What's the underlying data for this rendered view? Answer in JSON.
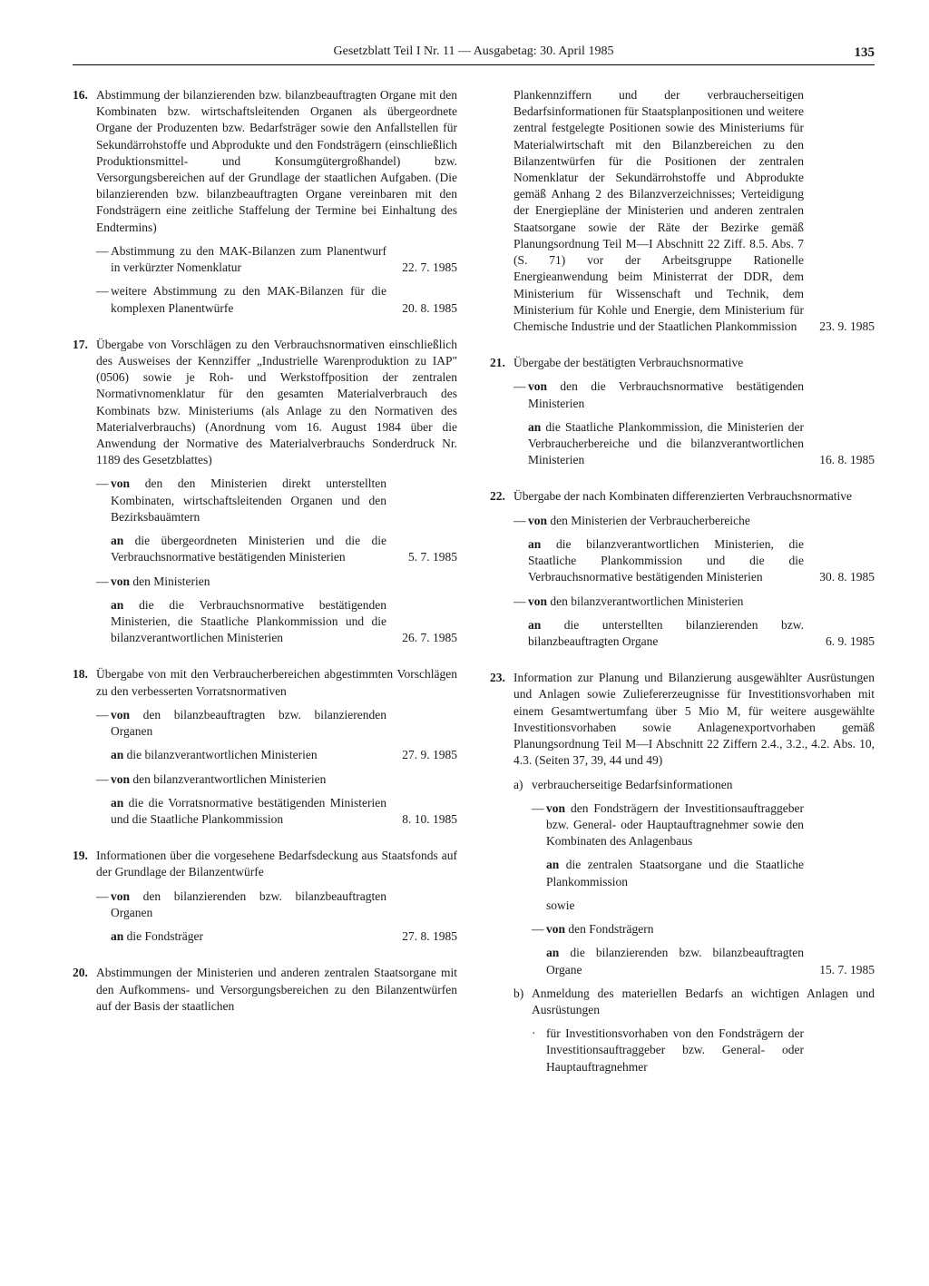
{
  "header": {
    "title": "Gesetzblatt Teil I Nr. 11 — Ausgabetag: 30. April 1985",
    "page": "135"
  },
  "items": [
    {
      "n": "16.",
      "text": "Abstimmung der bilanzierenden bzw. bilanzbeauftragten Organe mit den Kombinaten bzw. wirtschaftsleitenden Organen als übergeordnete Organe der Produzenten bzw. Bedarfsträger sowie den Anfallstellen für Sekundärrohstoffe und Abprodukte und den Fondsträgern (einschließlich Produktionsmittel- und Konsumgütergroßhandel) bzw. Versorgungsbereichen auf der Grundlage der staatlichen Aufgaben. (Die bilanzierenden bzw. bilanzbeauftragten Organe vereinbaren mit den Fondsträgern eine zeitliche Staffelung der Termine bei Einhaltung des Endtermins)",
      "subs": [
        {
          "text": "Abstimmung zu den MAK-Bilanzen zum Planentwurf in verkürzter Nomenklatur",
          "date": "22.  7. 1985"
        },
        {
          "text": "weitere Abstimmung zu den MAK-Bilanzen für die komplexen Planentwürfe",
          "date": "20.  8. 1985"
        }
      ]
    },
    {
      "n": "17.",
      "text": "Übergabe von Vorschlägen zu den Verbrauchsnormativen einschließlich des Ausweises der Kennziffer „Industrielle Warenproduktion zu IAP\" (0506) sowie je Roh- und Werkstoffposition der zentralen Normativnomenklatur für den gesamten Materialverbrauch des Kombinats bzw. Ministeriums (als Anlage zu den Normativen des Materialverbrauchs) (Anordnung vom 16. August 1984 über die Anwendung der Normative des Materialverbrauchs Sonderdruck Nr. 1189 des Gesetzblattes)",
      "subs": [
        {
          "von": "von",
          "vonTxt": " den den Ministerien direkt unterstellten Kombinaten, wirtschaftsleitenden Organen und den Bezirksbauämtern",
          "an": "an",
          "anTxt": " die übergeordneten Ministerien und die die Verbrauchsnormative bestätigenden Ministerien",
          "date": "5.  7. 1985"
        },
        {
          "von": "von",
          "vonTxt": " den Ministerien",
          "an": "an",
          "anTxt": " die die Verbrauchsnormative bestätigenden Ministerien, die Staatliche Plankommission und die bilanzverantwortlichen Ministerien",
          "date": "26.  7. 1985"
        }
      ]
    },
    {
      "n": "18.",
      "text": "Übergabe von mit den Verbraucherbereichen abgestimmten Vorschlägen zu den verbesserten Vorratsnormativen",
      "subs": [
        {
          "von": "von",
          "vonTxt": " den bilanzbeauftragten bzw. bilanzierenden Organen",
          "an": "an",
          "anTxt": " die bilanzverantwortlichen Ministerien",
          "date": "27.  9. 1985"
        },
        {
          "von": "von",
          "vonTxt": " den bilanzverantwortlichen Ministerien",
          "an": "an",
          "anTxt": " die die Vorratsnormative bestätigenden Ministerien und die Staatliche Plankommission",
          "date": "8. 10. 1985"
        }
      ]
    },
    {
      "n": "19.",
      "text": "Informationen über die vorgesehene Bedarfsdeckung aus Staatsfonds auf der Grundlage der Bilanzentwürfe",
      "subs": [
        {
          "von": "von",
          "vonTxt": " den bilanzierenden bzw. bilanzbeauftragten Organen",
          "an": "an",
          "anTxt": " die Fondsträger",
          "date": "27.  8. 1985"
        }
      ]
    },
    {
      "n": "20.",
      "text": "Abstimmungen der Ministerien und anderen zentralen Staatsorgane mit den Aufkommens- und Versorgungsbereichen zu den Bilanzentwürfen auf der Basis der staatlichen"
    },
    {
      "n": "20.",
      "continuation": true,
      "text": "Plankennziffern und der verbraucherseitigen Bedarfsinformationen für Staatsplanpositionen und weitere zentral festgelegte Positionen sowie des Ministeriums für Materialwirtschaft mit den Bilanzbereichen zu den Bilanzentwürfen für die Positionen der zentralen Nomenklatur der Sekundärrohstoffe und Abprodukte gemäß Anhang 2 des Bilanzverzeichnisses; Verteidigung der Energiepläne der Ministerien und anderen zentralen Staatsorgane sowie der Räte der Bezirke gemäß Planungsordnung Teil M—I Abschnitt 22 Ziff. 8.5. Abs. 7 (S. 71) vor der Arbeitsgruppe Rationelle Energieanwendung beim Ministerrat der DDR, dem Ministerium für Wissenschaft und Technik, dem Ministerium für Kohle und Energie, dem Ministerium für Chemische Industrie und der Staatlichen Plankommission",
      "date": "23.  9. 1985"
    },
    {
      "n": "21.",
      "text": "Übergabe der bestätigten Verbrauchsnormative",
      "subs": [
        {
          "von": "von",
          "vonTxt": " den die Verbrauchsnormative bestätigenden Ministerien",
          "an": "an",
          "anTxt": " die Staatliche Plankommission, die Ministerien der Verbraucherbereiche und die bilanzverantwortlichen Ministerien",
          "date": "16.  8. 1985"
        }
      ]
    },
    {
      "n": "22.",
      "text": "Übergabe der nach Kombinaten differenzierten Verbrauchsnormative",
      "subs": [
        {
          "von": "von",
          "vonTxt": " den Ministerien der Verbraucherbereiche",
          "an": "an",
          "anTxt": " die bilanzverantwortlichen Ministerien, die Staatliche Plankommission und die die Verbrauchsnormative bestätigenden Ministerien",
          "date": "30.  8. 1985"
        },
        {
          "von": "von",
          "vonTxt": " den bilanzverantwortlichen Ministerien",
          "an": "an",
          "anTxt": " die unterstellten bilanzierenden bzw. bilanzbeauftragten Organe",
          "date": "6.  9. 1985"
        }
      ]
    },
    {
      "n": "23.",
      "text": "Information zur Planung und Bilanzierung ausgewählter Ausrüstungen und Anlagen sowie Zuliefererzeugnisse für Investitionsvorhaben mit einem Gesamtwertumfang über 5 Mio M, für weitere ausgewählte Investitionsvorhaben sowie Anlagenexportvorhaben gemäß Planungsordnung Teil M—I Abschnitt 22 Ziffern 2.4., 3.2., 4.2. Abs. 10, 4.3. (Seiten 37, 39, 44 und 49)",
      "letters": [
        {
          "l": "a)",
          "text": "verbraucherseitige Bedarfsinformationen",
          "subs": [
            {
              "von": "von",
              "vonTxt": " den Fondsträgern der Investitionsauftraggeber bzw. General- oder Hauptauftragnehmer sowie den Kombinaten des Anlagenbaus",
              "an": "an",
              "anTxt": " die zentralen Staatsorgane und die Staatliche Plankommission",
              "extra": "sowie"
            },
            {
              "von": "von",
              "vonTxt": " den Fondsträgern",
              "an": "an",
              "anTxt": " die bilanzierenden bzw. bilanzbeauftragten Organe",
              "date": "15.  7. 1985"
            }
          ]
        },
        {
          "l": "b)",
          "text": "Anmeldung des materiellen Bedarfs an wichtigen Anlagen und Ausrüstungen",
          "subs": [
            {
              "bullet": "·",
              "text": "für Investitionsvorhaben von den Fondsträgern der Investitionsauftraggeber bzw. General- oder Hauptauftragnehmer"
            }
          ]
        }
      ]
    }
  ]
}
